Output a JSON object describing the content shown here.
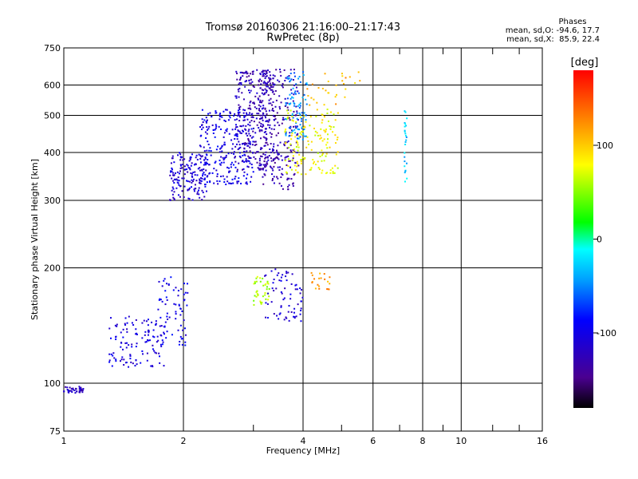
{
  "header": {
    "title_line1": "Tromsø 20160306 21:16:00–21:17:43",
    "title_line2": "RwPretec (8p)"
  },
  "stats": {
    "heading": "Phases",
    "line_o": "mean, sd,O: -94.6, 17.7",
    "line_x": "mean, sd,X:  85.9, 22.4"
  },
  "colorbar": {
    "label": "[deg]",
    "ticks": [
      100,
      0,
      -100
    ],
    "range": [
      -180,
      180
    ]
  },
  "chart_data": {
    "type": "scatter",
    "title": "Tromsø 20160306 21:16:00–21:17:43",
    "subtitle": "RwPretec (8p)",
    "xlabel": "Frequency [MHz]",
    "ylabel": "Stationary phase Virtual Height [km]",
    "xscale": "log",
    "yscale": "log",
    "xlim": [
      1,
      16
    ],
    "ylim": [
      75,
      750
    ],
    "x_ticks": [
      1,
      2,
      4,
      6,
      8,
      10,
      16
    ],
    "y_ticks": [
      75,
      100,
      200,
      300,
      400,
      500,
      600,
      750
    ],
    "grid": true,
    "color_by": "phase",
    "clusters": [
      {
        "phase": -120,
        "x_range": [
          1.0,
          1.12
        ],
        "y_range": [
          94,
          98
        ],
        "count": 40
      },
      {
        "phase": -105,
        "x_range": [
          1.3,
          1.8
        ],
        "y_range": [
          110,
          150
        ],
        "count": 120
      },
      {
        "phase": -100,
        "x_range": [
          1.7,
          2.05
        ],
        "y_range": [
          125,
          190
        ],
        "count": 70
      },
      {
        "phase": -110,
        "x_range": [
          1.85,
          2.3
        ],
        "y_range": [
          300,
          400
        ],
        "count": 160
      },
      {
        "phase": -100,
        "x_range": [
          2.2,
          3.0
        ],
        "y_range": [
          330,
          520
        ],
        "count": 260
      },
      {
        "phase": -125,
        "x_range": [
          2.7,
          3.4
        ],
        "y_range": [
          360,
          660
        ],
        "count": 300
      },
      {
        "phase": -130,
        "x_range": [
          3.1,
          3.9
        ],
        "y_range": [
          320,
          660
        ],
        "count": 220
      },
      {
        "phase": -50,
        "x_range": [
          3.6,
          4.1
        ],
        "y_range": [
          430,
          650
        ],
        "count": 90
      },
      {
        "phase": 80,
        "x_range": [
          3.6,
          4.9
        ],
        "y_range": [
          350,
          520
        ],
        "count": 150
      },
      {
        "phase": 110,
        "x_range": [
          4.1,
          5.6
        ],
        "y_range": [
          530,
          650
        ],
        "count": 30
      },
      {
        "phase": 60,
        "x_range": [
          3.0,
          3.3
        ],
        "y_range": [
          160,
          190
        ],
        "count": 40
      },
      {
        "phase": -110,
        "x_range": [
          3.2,
          4.0
        ],
        "y_range": [
          145,
          200
        ],
        "count": 70
      },
      {
        "phase": 120,
        "x_range": [
          4.2,
          4.7
        ],
        "y_range": [
          175,
          195
        ],
        "count": 20
      },
      {
        "phase": -30,
        "x_range": [
          7.2,
          7.3
        ],
        "y_range": [
          320,
          520
        ],
        "count": 25
      }
    ],
    "phase_mean_sd": {
      "O": [
        -94.6,
        17.7
      ],
      "X": [
        85.9,
        22.4
      ]
    }
  }
}
